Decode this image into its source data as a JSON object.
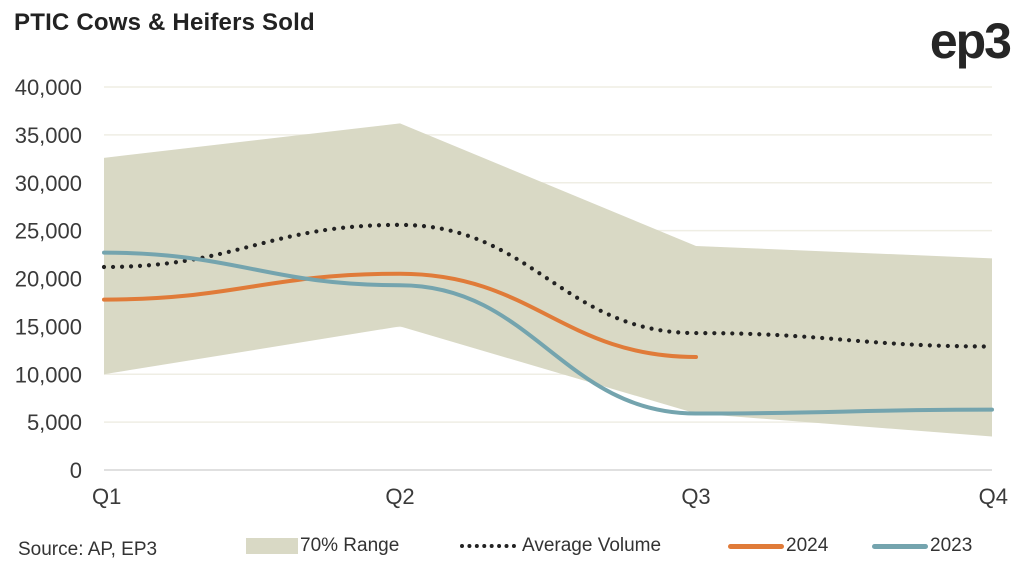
{
  "header": {
    "title": "PTIC Cows & Heifers Sold",
    "logo": "ep3"
  },
  "source": "Source: AP, EP3",
  "chart_data": {
    "type": "line",
    "title": "PTIC Cows & Heifers Sold",
    "xlabel": "",
    "ylabel": "",
    "categories": [
      "Q1",
      "Q2",
      "Q3",
      "Q4"
    ],
    "ylim": [
      0,
      40000
    ],
    "yticks": [
      0,
      5000,
      10000,
      15000,
      20000,
      25000,
      30000,
      35000,
      40000
    ],
    "ytick_labels": [
      "0",
      "5,000",
      "10,000",
      "15,000",
      "20,000",
      "25,000",
      "30,000",
      "35,000",
      "40,000"
    ],
    "grid": true,
    "legend_position": "bottom",
    "range": {
      "name": "70% Range",
      "upper": [
        32600,
        36200,
        23400,
        22100
      ],
      "lower": [
        10000,
        15000,
        5900,
        3500
      ],
      "color": "#d9d9c5"
    },
    "series": [
      {
        "name": "Average Volume",
        "values": [
          21200,
          25600,
          14300,
          12900
        ],
        "color": "#222222",
        "style": "dotted"
      },
      {
        "name": "2024",
        "values": [
          17800,
          20500,
          11800,
          null
        ],
        "color": "#e07b39",
        "style": "solid"
      },
      {
        "name": "2023",
        "values": [
          22700,
          19300,
          5900,
          6300
        ],
        "color": "#74a4ae",
        "style": "solid"
      }
    ]
  }
}
